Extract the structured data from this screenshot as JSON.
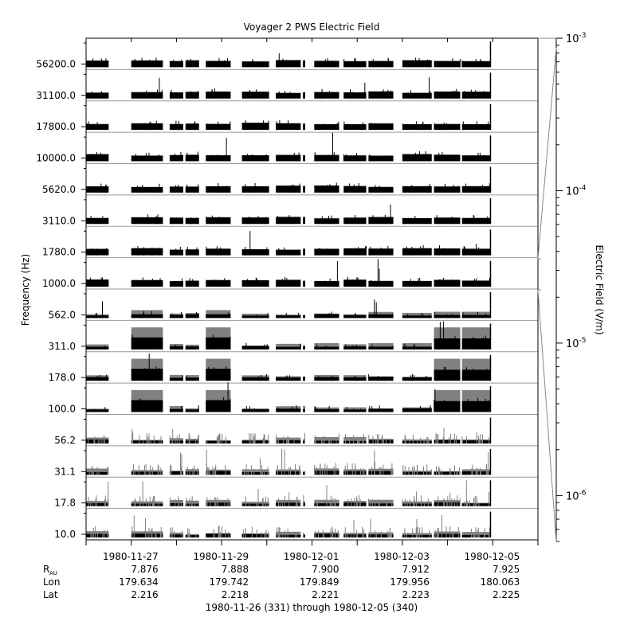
{
  "chart_data": {
    "type": "line",
    "title": "Voyager 2 PWS Electric Field",
    "ylabel": "Frequency (Hz)",
    "colorbar_label": "Electric Field (V/m)",
    "channels": [
      "56200.0",
      "31100.0",
      "17800.0",
      "10000.0",
      "5620.0",
      "3110.0",
      "1780.0",
      "1000.0",
      "562.0",
      "311.0",
      "178.0",
      "100.0",
      "56.2",
      "31.1",
      "17.8",
      "10.0"
    ],
    "x_range": [
      "1980-11-26",
      "1980-12-05"
    ],
    "x_ticks": [
      "1980-11-27",
      "1980-11-29",
      "1980-12-01",
      "1980-12-03",
      "1980-12-05"
    ],
    "ephemeris": [
      {
        "label_main": "R",
        "label_sub": "AU",
        "values": [
          "7.876",
          "7.888",
          "7.900",
          "7.912",
          "7.925"
        ]
      },
      {
        "label_main": "Lon",
        "label_sub": "",
        "values": [
          "179.634",
          "179.742",
          "179.849",
          "179.956",
          "180.063"
        ]
      },
      {
        "label_main": "Lat",
        "label_sub": "",
        "values": [
          "2.216",
          "2.218",
          "2.221",
          "2.223",
          "2.225"
        ]
      }
    ],
    "date_range_label": "1980-11-26 (331) through 1980-12-05 (340)",
    "colorbar": {
      "scale": "log",
      "range": [
        5e-07,
        0.001
      ],
      "ticks": [
        {
          "base": "10",
          "exp": "-3",
          "value": 0.001
        },
        {
          "base": "10",
          "exp": "-4",
          "value": 0.0001
        },
        {
          "base": "10",
          "exp": "-5",
          "value": 1e-05
        },
        {
          "base": "10",
          "exp": "-6",
          "value": 1e-06
        }
      ]
    },
    "colors": {
      "peak": "#808080",
      "average": "#000000",
      "frame": "#000000",
      "separator": "#999999"
    },
    "data_segments_days": [
      [
        0.0,
        0.5
      ],
      [
        1.0,
        1.7
      ],
      [
        1.85,
        2.15
      ],
      [
        2.2,
        2.5
      ],
      [
        2.65,
        3.2
      ],
      [
        3.45,
        4.05
      ],
      [
        4.2,
        4.75
      ],
      [
        4.8,
        4.85
      ],
      [
        5.05,
        5.6
      ],
      [
        5.7,
        6.2
      ],
      [
        6.25,
        6.8
      ],
      [
        7.0,
        7.65
      ],
      [
        7.7,
        8.28
      ],
      [
        8.32,
        8.95
      ]
    ],
    "data_end_day": 8.95
  }
}
